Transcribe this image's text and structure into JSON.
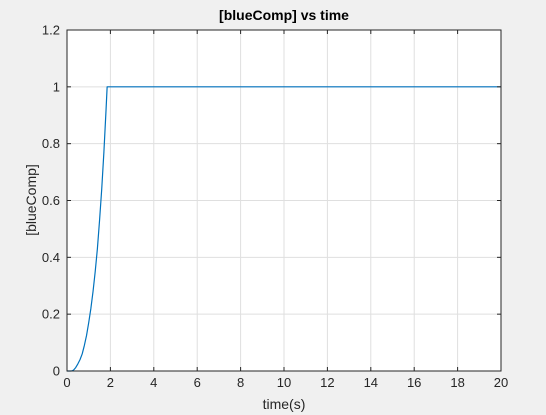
{
  "chart_data": {
    "type": "line",
    "title": "[blueComp] vs time",
    "xlabel": "time(s)",
    "ylabel": "[blueComp]",
    "xlim": [
      0,
      20
    ],
    "ylim": [
      0,
      1.2
    ],
    "xticks": [
      0,
      2,
      4,
      6,
      8,
      10,
      12,
      14,
      16,
      18,
      20
    ],
    "yticks": [
      0,
      0.2,
      0.4,
      0.6,
      0.8,
      1,
      1.2
    ],
    "xtick_labels": [
      "0",
      "2",
      "4",
      "6",
      "8",
      "10",
      "12",
      "14",
      "16",
      "18",
      "20"
    ],
    "ytick_labels": [
      "0",
      "0.2",
      "0.4",
      "0.6",
      "0.8",
      "1",
      "1.2"
    ],
    "grid": true,
    "series": [
      {
        "color": "#0072bd",
        "x": [
          0,
          0.2,
          0.3,
          0.4,
          0.5,
          0.6,
          0.7,
          0.8,
          0.9,
          1.0,
          1.1,
          1.2,
          1.3,
          1.4,
          1.5,
          1.6,
          1.7,
          1.8,
          1.85,
          2,
          4,
          6,
          8,
          10,
          12,
          14,
          16,
          18,
          20
        ],
        "y": [
          0,
          0,
          0.003,
          0.012,
          0.025,
          0.04,
          0.06,
          0.09,
          0.125,
          0.17,
          0.22,
          0.28,
          0.35,
          0.43,
          0.53,
          0.64,
          0.77,
          0.92,
          1.0,
          1.0,
          1.0,
          1.0,
          1.0,
          1.0,
          1.0,
          1.0,
          1.0,
          1.0,
          1.0
        ]
      }
    ]
  }
}
